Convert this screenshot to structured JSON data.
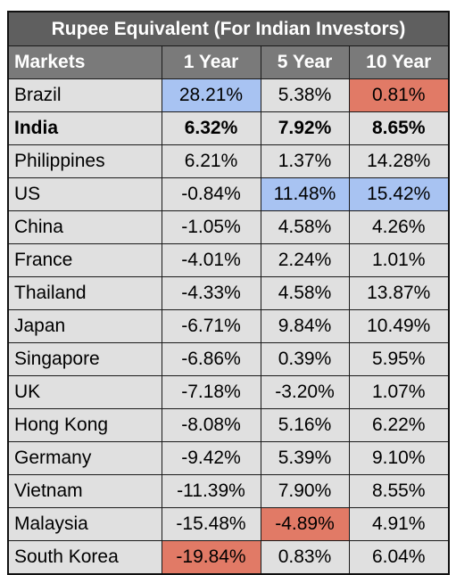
{
  "title": "Rupee Equivalent (For Indian Investors)",
  "columns": [
    "Markets",
    "1 Year",
    "5 Year",
    "10 Year"
  ],
  "highlight_colors": {
    "blue": "#a8c3f2",
    "red": "#e17a66"
  },
  "rows": [
    {
      "market": "Brazil",
      "values": [
        "28.21%",
        "5.38%",
        "0.81%"
      ],
      "highlight": [
        "blue",
        "",
        "red"
      ],
      "bold": false
    },
    {
      "market": "India",
      "values": [
        "6.32%",
        "7.92%",
        "8.65%"
      ],
      "highlight": [
        "",
        "",
        ""
      ],
      "bold": true
    },
    {
      "market": "Philippines",
      "values": [
        "6.21%",
        "1.37%",
        "14.28%"
      ],
      "highlight": [
        "",
        "",
        ""
      ],
      "bold": false
    },
    {
      "market": "US",
      "values": [
        "-0.84%",
        "11.48%",
        "15.42%"
      ],
      "highlight": [
        "",
        "blue",
        "blue"
      ],
      "bold": false
    },
    {
      "market": "China",
      "values": [
        "-1.05%",
        "4.58%",
        "4.26%"
      ],
      "highlight": [
        "",
        "",
        ""
      ],
      "bold": false
    },
    {
      "market": "France",
      "values": [
        "-4.01%",
        "2.24%",
        "1.01%"
      ],
      "highlight": [
        "",
        "",
        ""
      ],
      "bold": false
    },
    {
      "market": "Thailand",
      "values": [
        "-4.33%",
        "4.58%",
        "13.87%"
      ],
      "highlight": [
        "",
        "",
        ""
      ],
      "bold": false
    },
    {
      "market": "Japan",
      "values": [
        "-6.71%",
        "9.84%",
        "10.49%"
      ],
      "highlight": [
        "",
        "",
        ""
      ],
      "bold": false
    },
    {
      "market": "Singapore",
      "values": [
        "-6.86%",
        "0.39%",
        "5.95%"
      ],
      "highlight": [
        "",
        "",
        ""
      ],
      "bold": false
    },
    {
      "market": "UK",
      "values": [
        "-7.18%",
        "-3.20%",
        "1.07%"
      ],
      "highlight": [
        "",
        "",
        ""
      ],
      "bold": false
    },
    {
      "market": "Hong Kong",
      "values": [
        "-8.08%",
        "5.16%",
        "6.22%"
      ],
      "highlight": [
        "",
        "",
        ""
      ],
      "bold": false
    },
    {
      "market": "Germany",
      "values": [
        "-9.42%",
        "5.39%",
        "9.10%"
      ],
      "highlight": [
        "",
        "",
        ""
      ],
      "bold": false
    },
    {
      "market": "Vietnam",
      "values": [
        "-11.39%",
        "7.90%",
        "8.55%"
      ],
      "highlight": [
        "",
        "",
        ""
      ],
      "bold": false
    },
    {
      "market": "Malaysia",
      "values": [
        "-15.48%",
        "-4.89%",
        "4.91%"
      ],
      "highlight": [
        "",
        "red",
        ""
      ],
      "bold": false
    },
    {
      "market": "South Korea",
      "values": [
        "-19.84%",
        "0.83%",
        "6.04%"
      ],
      "highlight": [
        "red",
        "",
        ""
      ],
      "bold": false
    }
  ]
}
